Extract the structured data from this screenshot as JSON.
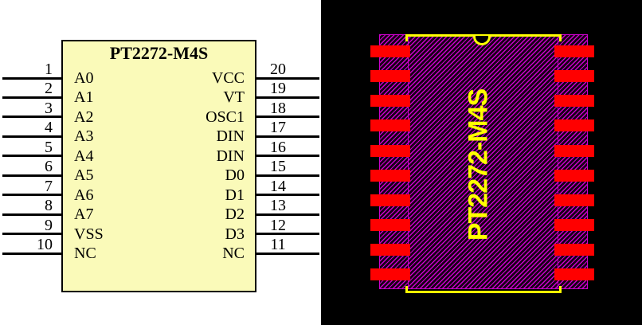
{
  "schematic": {
    "title": "PT2272-M4S",
    "left_pins": [
      {
        "num": "1",
        "label": "A0"
      },
      {
        "num": "2",
        "label": "A1"
      },
      {
        "num": "3",
        "label": "A2"
      },
      {
        "num": "4",
        "label": "A3"
      },
      {
        "num": "5",
        "label": "A4"
      },
      {
        "num": "6",
        "label": "A5"
      },
      {
        "num": "7",
        "label": "A6"
      },
      {
        "num": "8",
        "label": "A7"
      },
      {
        "num": "9",
        "label": "VSS"
      },
      {
        "num": "10",
        "label": "NC"
      }
    ],
    "right_pins": [
      {
        "num": "20",
        "label": "VCC"
      },
      {
        "num": "19",
        "label": "VT"
      },
      {
        "num": "18",
        "label": "OSC1"
      },
      {
        "num": "17",
        "label": "DIN"
      },
      {
        "num": "16",
        "label": "DIN"
      },
      {
        "num": "15",
        "label": "D0"
      },
      {
        "num": "14",
        "label": "D1"
      },
      {
        "num": "13",
        "label": "D2"
      },
      {
        "num": "12",
        "label": "D3"
      },
      {
        "num": "11",
        "label": "NC"
      }
    ],
    "colors": {
      "background": "#ffffff",
      "body_fill": "#fafab9",
      "outline": "#000000"
    }
  },
  "footprint": {
    "label": "PT2272-M4S",
    "pads_per_side": 10,
    "colors": {
      "background": "#000000",
      "pad": "#ff0000",
      "silkscreen": "#ffff00",
      "hatch": "#cc00cc"
    }
  }
}
